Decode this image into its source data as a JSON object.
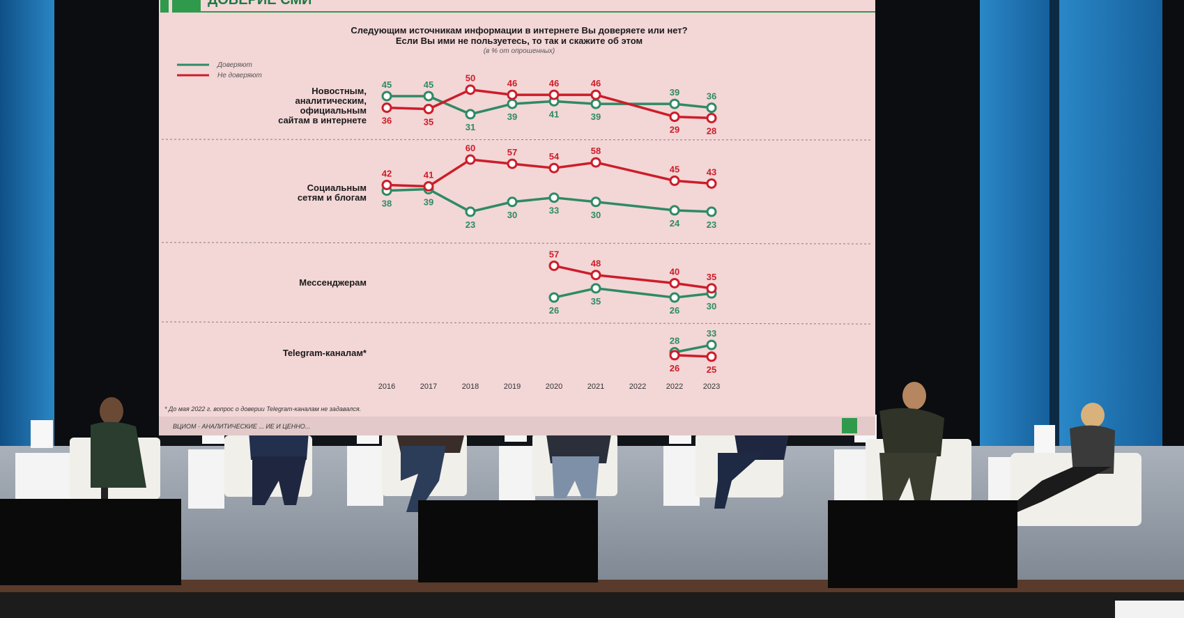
{
  "screen": {
    "header_text": "ДОВЕРИЕ СМИ",
    "title_line1": "Следующим источникам информации в интернете Вы доверяете или нет?",
    "title_line2": "Если Вы ими не пользуетесь, то так и скажите об этом",
    "subtitle": "(в % от опрошенных)",
    "legend": [
      {
        "label": "Доверяют",
        "color": "#2e8a65"
      },
      {
        "label": "Не доверяют",
        "color": "#cc1d2a"
      }
    ],
    "footnote": "* До мая 2022 г. вопрос о доверии Telegram-каналам не задавался.",
    "bottom_strip": "ВЦИОМ · АНАЛИТИЧЕСКИЕ ... ИЕ И ЦЕННО..."
  },
  "chart_data": {
    "type": "line",
    "x": [
      "2016",
      "2017",
      "2018",
      "2019",
      "2020",
      "2021",
      "2022",
      "2022",
      "2023"
    ],
    "panels": [
      {
        "category": [
          "Новостным,",
          "аналитическим,",
          "официальным",
          "сайтам в интернете"
        ],
        "series": [
          {
            "name": "Доверяют",
            "values": [
              45,
              45,
              31,
              39,
              41,
              39,
              39,
              36
            ],
            "x_index": [
              0,
              1,
              2,
              3,
              4,
              5,
              6,
              7
            ]
          },
          {
            "name": "Не доверяют",
            "values": [
              36,
              35,
              50,
              46,
              46,
              46,
              29,
              28
            ],
            "x_index": [
              0,
              1,
              2,
              3,
              4,
              5,
              6,
              7
            ]
          }
        ]
      },
      {
        "category": [
          "Социальным",
          "сетям и блогам"
        ],
        "series": [
          {
            "name": "Доверяют",
            "values": [
              38,
              39,
              23,
              30,
              33,
              30,
              24,
              23
            ],
            "x_index": [
              0,
              1,
              2,
              3,
              4,
              5,
              6,
              7
            ]
          },
          {
            "name": "Не доверяют",
            "values": [
              42,
              41,
              60,
              57,
              54,
              58,
              45,
              43
            ],
            "x_index": [
              0,
              1,
              2,
              3,
              4,
              5,
              6,
              7
            ]
          }
        ]
      },
      {
        "category": [
          "Мессенджерам"
        ],
        "series": [
          {
            "name": "Доверяют",
            "values": [
              26,
              35,
              26,
              30
            ],
            "x_index": [
              4,
              5,
              6,
              7
            ]
          },
          {
            "name": "Не доверяют",
            "values": [
              57,
              48,
              40,
              35
            ],
            "x_index": [
              4,
              5,
              6,
              7
            ]
          }
        ]
      },
      {
        "category": [
          "Telegram-каналам*"
        ],
        "series": [
          {
            "name": "Доверяют",
            "values": [
              28,
              33
            ],
            "x_index": [
              6,
              7
            ]
          },
          {
            "name": "Не доверяют",
            "values": [
              26,
              25
            ],
            "x_index": [
              6,
              7
            ]
          }
        ]
      }
    ]
  },
  "stage": {
    "panelists": [
      "speaker-1",
      "speaker-2",
      "speaker-3",
      "speaker-4",
      "speaker-5",
      "speaker-6",
      "speaker-7"
    ],
    "colors": {
      "backdrop_blue": "#1e6fae",
      "floor": "#8d96a3",
      "screen": "#f3d6d6"
    }
  }
}
